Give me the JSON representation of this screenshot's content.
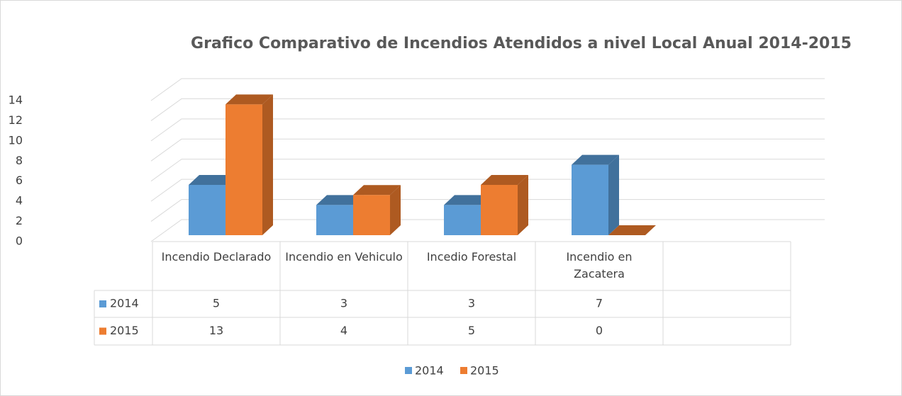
{
  "chart_data": {
    "type": "bar3d",
    "title": "Grafico Comparativo de Incendios Atendidos a nivel Local Anual 2014-2015",
    "categories": [
      "Incendio Declarado",
      "Incendio en Vehiculo",
      "Incedio Forestal",
      "Incendio en Zacatera",
      null
    ],
    "series": [
      {
        "name": "2014",
        "color": "#5b9bd5",
        "side": "#41719c",
        "values": [
          5,
          3,
          3,
          7,
          null
        ]
      },
      {
        "name": "2015",
        "color": "#ed7d31",
        "side": "#ae5a21",
        "values": [
          13,
          4,
          5,
          0,
          null
        ]
      }
    ],
    "ylim": [
      0,
      14
    ],
    "yticks": [
      0,
      2,
      4,
      6,
      8,
      10,
      12,
      14
    ],
    "grid": true,
    "data_table": true,
    "legend": "bottom"
  }
}
